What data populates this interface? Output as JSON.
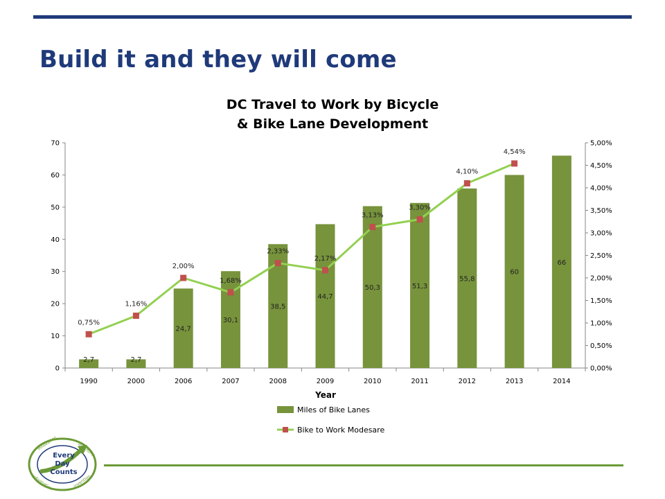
{
  "slide": {
    "title": "Build it and they will come"
  },
  "logo": {
    "center_text": [
      "Every",
      "Day",
      "Counts"
    ],
    "ring_words": [
      "innovation",
      "ingenuity",
      "information",
      "invention"
    ]
  },
  "colors": {
    "brand_blue": "#1f3a7a",
    "accent_green": "#6b9a36",
    "bar_green": "#77933c",
    "line_green": "#92d050",
    "marker_red": "#c0504d"
  },
  "chart_data": {
    "type": "bar+line",
    "title_lines": [
      "DC Travel to Work by Bicycle",
      "& Bike Lane Development"
    ],
    "xlabel": "Year",
    "categories": [
      "1990",
      "2000",
      "2006",
      "2007",
      "2008",
      "2009",
      "2010",
      "2011",
      "2012",
      "2013",
      "2014"
    ],
    "y_left": {
      "range": [
        0,
        70
      ],
      "ticks": [
        "0",
        "10",
        "20",
        "30",
        "40",
        "50",
        "60",
        "70"
      ]
    },
    "y_right": {
      "range": [
        0,
        5
      ],
      "ticks": [
        "0,00%",
        "0,50%",
        "1,00%",
        "1,50%",
        "2,00%",
        "2,50%",
        "3,00%",
        "3,50%",
        "4,00%",
        "4,50%",
        "5,00%"
      ]
    },
    "series": [
      {
        "name": "Miles of Bike Lanes",
        "kind": "bar",
        "axis": "left",
        "values": [
          2.7,
          2.7,
          24.7,
          30.1,
          38.5,
          44.7,
          50.3,
          51.3,
          55.8,
          60,
          66
        ],
        "labels": [
          "2,7",
          "2,7",
          "24,7",
          "30,1",
          "38,5",
          "44,7",
          "50,3",
          "51,3",
          "55,8",
          "60",
          "66"
        ]
      },
      {
        "name": "Bike to Work Modesare",
        "kind": "line",
        "axis": "right",
        "values": [
          0.75,
          1.16,
          2.0,
          1.68,
          2.33,
          2.17,
          3.13,
          3.3,
          4.1,
          4.54,
          null
        ],
        "labels": [
          "0,75%",
          "1,16%",
          "2,00%",
          "1,68%",
          "2,33%",
          "2,17%",
          "3,13%",
          "3,30%",
          "4,10%",
          "4,54%",
          null
        ]
      }
    ],
    "legend_position": "bottom",
    "grid": false
  }
}
